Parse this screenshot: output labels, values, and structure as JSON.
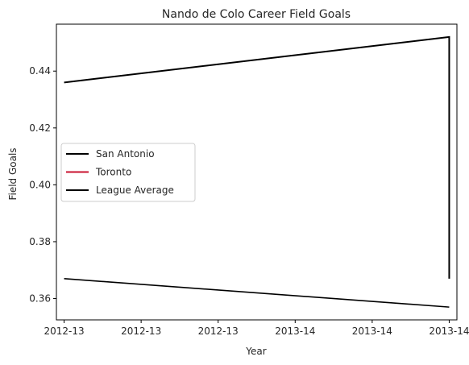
{
  "chart_data": {
    "type": "line",
    "title": "Nando de Colo Career Field Goals",
    "xlabel": "Year",
    "ylabel": "Field Goals",
    "x_tick_labels": [
      "2012-13",
      "2012-13",
      "2012-13",
      "2013-14",
      "2013-14",
      "2013-14"
    ],
    "x_range": [
      -0.1,
      5.1
    ],
    "y_ticks": [
      0.36,
      0.38,
      0.4,
      0.42,
      0.44
    ],
    "y_tick_labels": [
      "0.36",
      "0.38",
      "0.40",
      "0.42",
      "0.44"
    ],
    "ylim": [
      0.3525,
      0.4565
    ],
    "grid": false,
    "legend_position": "center-left",
    "series": [
      {
        "name": "San Antonio",
        "color": "#000000",
        "x": [
          0,
          5,
          5
        ],
        "y": [
          0.436,
          0.452,
          0.367
        ]
      },
      {
        "name": "Toronto",
        "color": "#c8102e",
        "x": [],
        "y": []
      },
      {
        "name": "League Average",
        "color": "#000000",
        "x": [
          0,
          5
        ],
        "y": [
          0.367,
          0.357
        ]
      }
    ]
  }
}
